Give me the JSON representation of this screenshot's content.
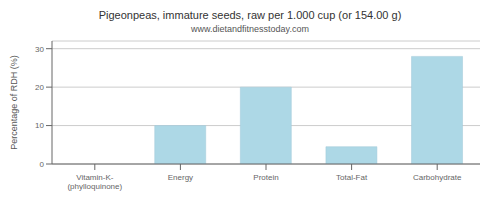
{
  "chart_data": {
    "type": "bar",
    "title": "Pigeonpeas, immature seeds, raw per 1.000 cup (or 154.00 g)",
    "subtitle": "www.dietandfitnesstoday.com",
    "categories": [
      "Vitamin-K-(phylloquinone)",
      "Energy",
      "Protein",
      "Total-Fat",
      "Carbohydrate"
    ],
    "values": [
      0,
      10,
      20,
      4.5,
      28
    ],
    "color": "#add8e6",
    "ylabel": "Percentage of RDH (%)",
    "ylim": [
      0,
      32
    ],
    "yticks": [
      0,
      10,
      20,
      30
    ],
    "grid": true
  }
}
